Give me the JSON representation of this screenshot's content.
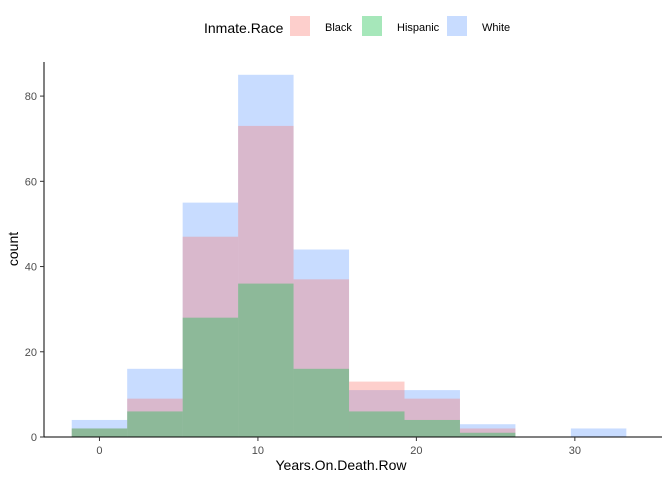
{
  "chart_data": {
    "type": "histogram",
    "xlabel": "Years.On.Death.Row",
    "ylabel": "count",
    "legend": {
      "title": "Inmate.Race",
      "position": "top",
      "entries": [
        "Black",
        "Hispanic",
        "White"
      ]
    },
    "x_ticks": [
      "0",
      "10",
      "20",
      "30"
    ],
    "y_ticks": [
      "0",
      "20",
      "40",
      "60",
      "80"
    ],
    "xlim": [
      -3.5,
      35.5
    ],
    "ylim": [
      0,
      88
    ],
    "grid": false,
    "bins": [
      [
        -1.75,
        1.75
      ],
      [
        1.75,
        5.25
      ],
      [
        5.25,
        8.75
      ],
      [
        8.75,
        12.25
      ],
      [
        12.25,
        15.75
      ],
      [
        15.75,
        19.25
      ],
      [
        19.25,
        22.75
      ],
      [
        22.75,
        26.25
      ],
      [
        26.25,
        29.75
      ],
      [
        29.75,
        33.25
      ]
    ],
    "series": [
      {
        "name": "Black",
        "color": "#F8766D",
        "values": [
          2,
          9,
          47,
          73,
          37,
          13,
          9,
          2,
          0,
          0
        ]
      },
      {
        "name": "Hispanic",
        "color": "#00BA38",
        "values": [
          2,
          6,
          28,
          36,
          16,
          6,
          4,
          1,
          0,
          0
        ]
      },
      {
        "name": "White",
        "color": "#619CFF",
        "values": [
          4,
          16,
          55,
          85,
          44,
          11,
          11,
          3,
          0,
          2
        ]
      }
    ]
  }
}
